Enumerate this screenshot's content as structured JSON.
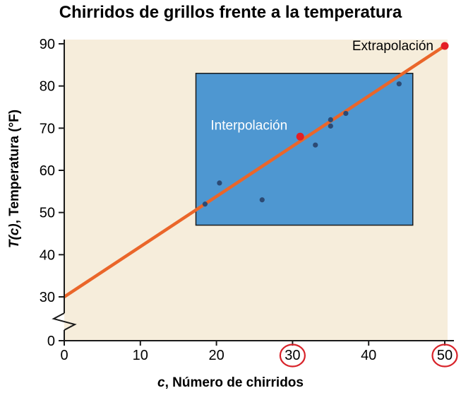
{
  "chart_data": {
    "type": "scatter",
    "title": "Chirridos de grillos frente a la temperatura",
    "xlabel": "c, Número de chirridos",
    "ylabel": "T(c), Temperatura (°F)",
    "xlabel_parts": {
      "var": "c",
      "rest": ", Número de chirridos"
    },
    "ylabel_parts": {
      "var": "T(c)",
      "rest": ", Temperatura (°F)"
    },
    "xlim": [
      0,
      50
    ],
    "ylim_upper": [
      30,
      90
    ],
    "y_axis_break_between": [
      0,
      30
    ],
    "grid": false,
    "x_ticks": [
      0,
      10,
      20,
      30,
      40,
      50
    ],
    "x_ticks_circled": [
      30,
      50
    ],
    "y_ticks_upper": [
      30,
      40,
      50,
      60,
      70,
      80,
      90
    ],
    "y_tick_zero": 0,
    "points": [
      {
        "c": 18.5,
        "T": 52
      },
      {
        "c": 20.4,
        "T": 57
      },
      {
        "c": 26,
        "T": 53
      },
      {
        "c": 33,
        "T": 66
      },
      {
        "c": 35,
        "T": 70.5
      },
      {
        "c": 35,
        "T": 72
      },
      {
        "c": 37,
        "T": 73.5
      },
      {
        "c": 44,
        "T": 80.5
      }
    ],
    "trend_line": {
      "points": [
        [
          0,
          30
        ],
        [
          50.4,
          90
        ]
      ]
    },
    "interpolation_point": {
      "c": 31,
      "T": 68,
      "label": "Interpolación",
      "label_color": "#ffffff"
    },
    "extrapolation_point": {
      "c": 50,
      "T": 89.5,
      "label": "Extrapolación",
      "label_color": "#000000"
    },
    "interpolation_box": {
      "x_min": 17.3,
      "x_max": 45.8,
      "T_min": 47,
      "T_max": 83
    },
    "colors": {
      "plot_background": "#f6eddb",
      "interpolation_box_fill": "#4e97d1",
      "box_border": "#1a1a1a",
      "trend_line": "#ea662a",
      "data_points": "#2c4a74",
      "highlight_points": "#e41e25",
      "tick_circle": "#d8232a",
      "axis": "#1a1a1a",
      "tick_text": "#000000"
    }
  }
}
